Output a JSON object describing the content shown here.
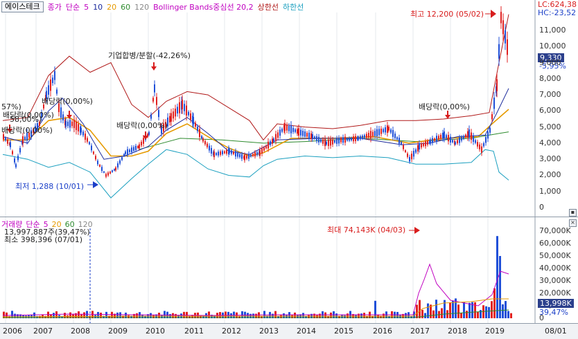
{
  "stock_name": "에이스테크",
  "price_legend": {
    "close_label": "종가",
    "ma_type": "단순",
    "ma5": "5",
    "ma10": "10",
    "ma20": "20",
    "ma60": "60",
    "ma120": "120",
    "bb_label": "Bollinger Bands중심선 20,2",
    "bb_upper": "상한선",
    "bb_lower": "하한선"
  },
  "vol_legend": {
    "label": "거래량",
    "ma_type": "단순",
    "ma5": "5",
    "ma20": "20",
    "ma60": "60",
    "ma120": "120"
  },
  "lc": "LC:624,38",
  "hc": "HC:-23,52",
  "price_tag": "9,330",
  "price_pct": "-5,95%",
  "vol_tag": "13,998K",
  "vol_pct": "39,47%",
  "price_axis": [
    "11,000",
    "10,000",
    "9,000",
    "8,000",
    "7,000",
    "6,000",
    "5,000",
    "4,000",
    "3,000",
    "2,000",
    "1,000",
    "0"
  ],
  "vol_axis": [
    "70,000K",
    "60,000K",
    "50,000K",
    "40,000K",
    "30,000K",
    "20,000K",
    "10,000K",
    "0"
  ],
  "x_labels": [
    "2006",
    "2007",
    "2008",
    "2009",
    "2010",
    "2011",
    "2012",
    "2013",
    "2014",
    "2015",
    "2016",
    "2017",
    "2018",
    "2019",
    "08/01"
  ],
  "annotations": {
    "high": "최고 12,200 (05/02)",
    "low": "최저 1,288 (10/01)",
    "merge": "기업합병/분할(-42,26%)",
    "div1": "배당락(0,00%)",
    "div2": "배당락(0,00%)",
    "div3": "배당락(0,00%)",
    "div4": "배당락(0,00%)",
    "div5": "배당락(0,00%)",
    "div6": "배당락(0,00%)",
    "frag1": "57%)",
    "frag2": "58,00%)",
    "max_vol": "최대 74,143K (04/03)"
  },
  "vol_info": {
    "line1": "13,997,887주(39,47%)",
    "line2": "최소 398,396 (07/01)"
  },
  "colors": {
    "up": "#e02020",
    "down": "#1f4fd8",
    "ma5": "#c000c0",
    "ma10": "#1b2a9c",
    "ma20": "#e69a00",
    "ma60": "#2e8b2e",
    "bb_upper": "#b01818",
    "bb_lower": "#1a9fbf"
  }
}
